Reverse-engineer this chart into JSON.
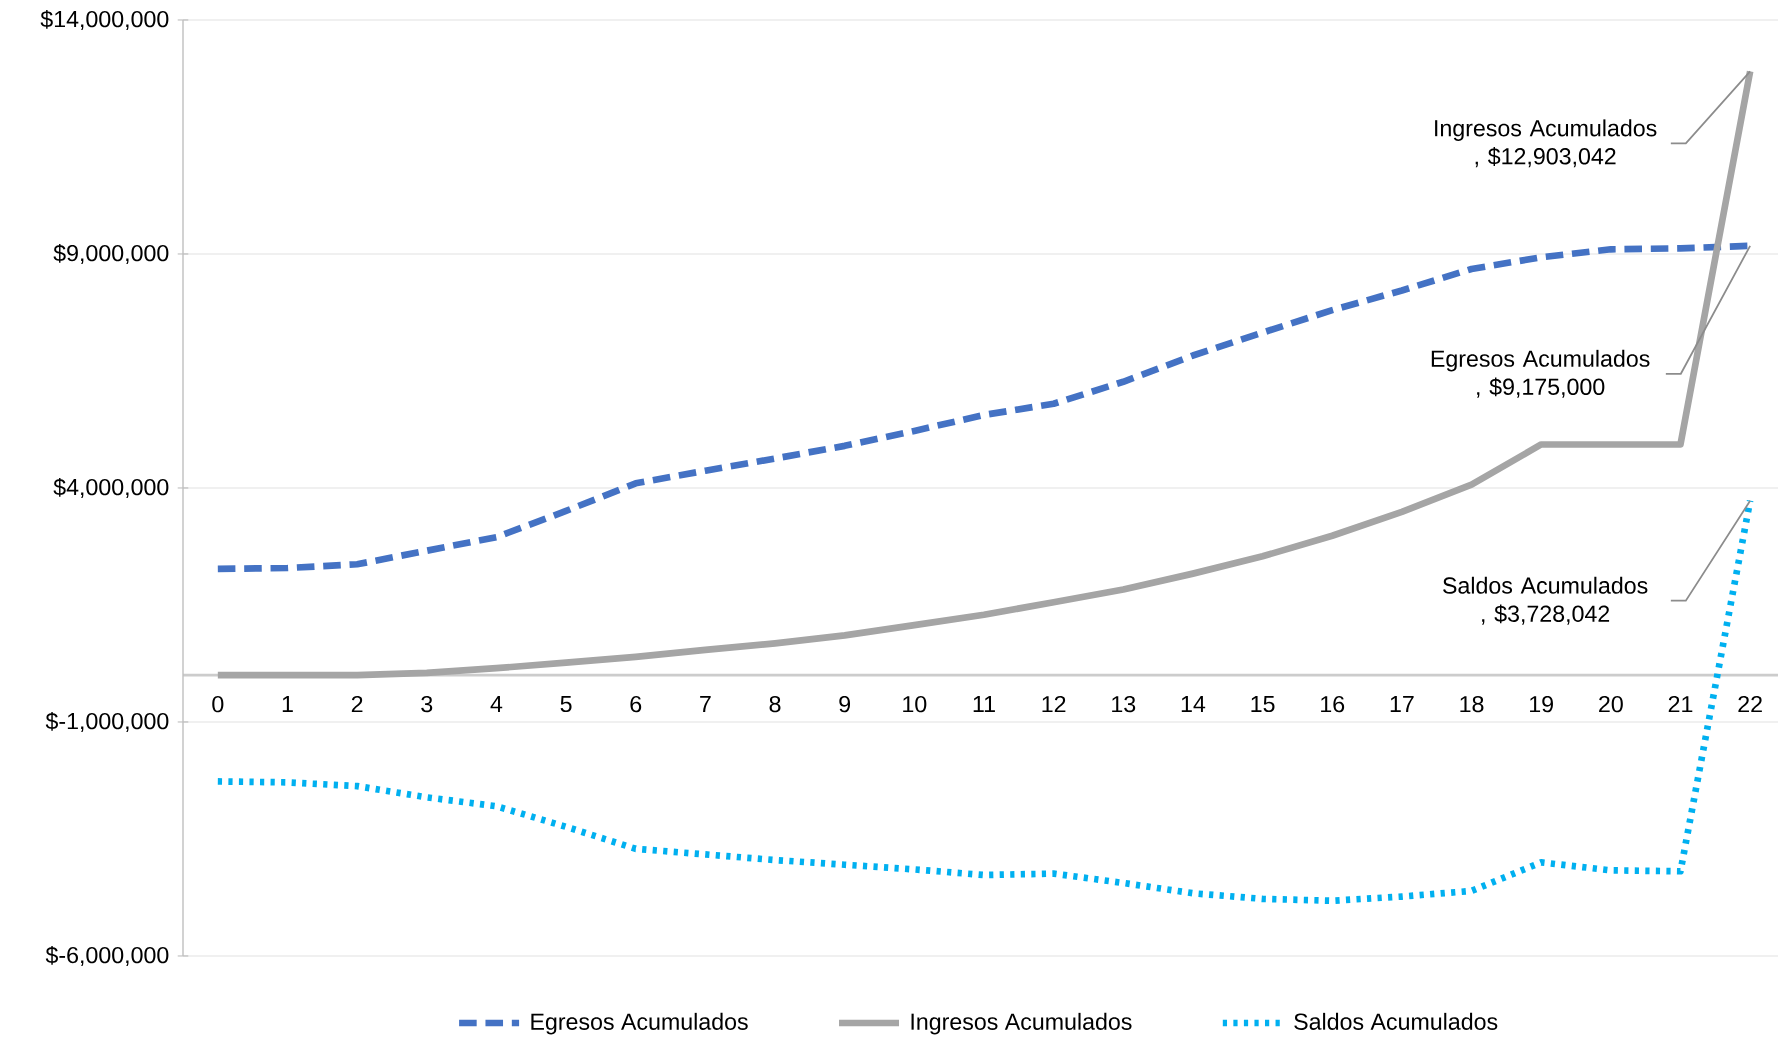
{
  "chart_data": {
    "type": "line",
    "categories": [
      "0",
      "1",
      "2",
      "3",
      "4",
      "5",
      "6",
      "7",
      "8",
      "9",
      "10",
      "11",
      "12",
      "13",
      "14",
      "15",
      "16",
      "17",
      "18",
      "19",
      "20",
      "21",
      "22"
    ],
    "series": [
      {
        "name": "Egresos Acumulados",
        "color": "#4472c4",
        "line_style": "dashed",
        "values": [
          2270000,
          2290000,
          2370000,
          2660000,
          2950000,
          3510000,
          4100000,
          4370000,
          4630000,
          4900000,
          5220000,
          5560000,
          5800000,
          6270000,
          6830000,
          7320000,
          7800000,
          8220000,
          8680000,
          8930000,
          9100000,
          9120000,
          9175000
        ]
      },
      {
        "name": "Ingresos Acumulados",
        "color": "#a5a5a5",
        "line_style": "solid",
        "values": [
          0,
          0,
          0,
          50000,
          150000,
          270000,
          390000,
          540000,
          680000,
          850000,
          1070000,
          1290000,
          1560000,
          1830000,
          2170000,
          2540000,
          2980000,
          3490000,
          4070000,
          4930000,
          4930000,
          4930000,
          12903042
        ]
      },
      {
        "name": "Saldos Acumulados",
        "color": "#00b0f0",
        "line_style": "dotted",
        "values": [
          -2270000,
          -2290000,
          -2370000,
          -2610000,
          -2800000,
          -3240000,
          -3710000,
          -3830000,
          -3950000,
          -4050000,
          -4150000,
          -4270000,
          -4240000,
          -4440000,
          -4660000,
          -4780000,
          -4820000,
          -4730000,
          -4610000,
          -4000000,
          -4170000,
          -4190000,
          3728042
        ]
      }
    ],
    "ylim": [
      -6000000,
      14000000
    ],
    "yticks": [
      {
        "value": -6000000,
        "label": "$-6,000,000"
      },
      {
        "value": -1000000,
        "label": "$-1,000,000"
      },
      {
        "value": 4000000,
        "label": "$4,000,000"
      },
      {
        "value": 9000000,
        "label": "$9,000,000"
      },
      {
        "value": 14000000,
        "label": "$14,000,000"
      }
    ],
    "grid": "y",
    "legend": "bottom",
    "marker": "none",
    "annotations": [
      {
        "text": "Ingresos Acumulados , $12,903,042",
        "x": "22",
        "y": 12903042
      },
      {
        "text": "Egresos Acumulados , $9,175,000",
        "x": "22",
        "y": 9175000
      },
      {
        "text": "Saldos Acumulados , $3,728,042",
        "x": "22",
        "y": 3728042
      }
    ]
  }
}
